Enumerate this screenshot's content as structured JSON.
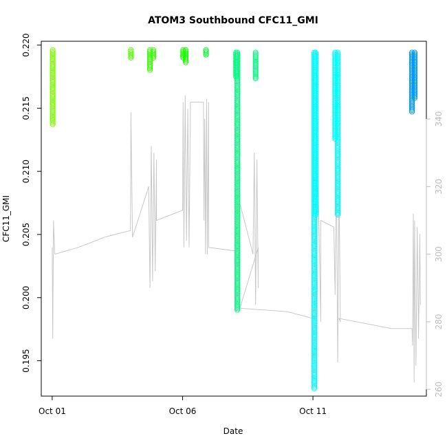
{
  "chart_data": {
    "type": "scatter",
    "title": "ATOM3 Southbound CFC11_GMI",
    "xlabel": "Date",
    "ylabel": "CFC11_GMI",
    "x_ticks": [
      "Oct 01",
      "Oct 06",
      "Oct 11"
    ],
    "x_tick_days": [
      1,
      6,
      11
    ],
    "xlim_days": [
      0.58,
      15.35
    ],
    "ylim": [
      0.1922,
      0.2203
    ],
    "y_ticks": [
      0.195,
      0.2,
      0.205,
      0.21,
      0.215,
      0.22
    ],
    "y_tick_labels": [
      "0.195",
      "0.200",
      "0.205",
      "0.210",
      "0.215",
      "0.220"
    ],
    "y2_ticks": [
      260,
      280,
      300,
      320,
      340
    ],
    "y2_lim": [
      258,
      363
    ],
    "grid": false,
    "series": [
      {
        "color": "#7FFF00",
        "points": [
          {
            "x": 1.02,
            "ymin": 0.2137,
            "ymax": 0.2196
          }
        ]
      },
      {
        "color": "#55FF00",
        "points": [
          {
            "x": 4.02,
            "ymin": 0.219,
            "ymax": 0.2196
          }
        ]
      },
      {
        "color": "#39FF00",
        "points": [
          {
            "x": 4.75,
            "ymin": 0.218,
            "ymax": 0.2196
          },
          {
            "x": 4.88,
            "ymin": 0.2189,
            "ymax": 0.2196
          }
        ]
      },
      {
        "color": "#19FF00",
        "points": [
          {
            "x": 6.02,
            "ymin": 0.219,
            "ymax": 0.2196
          },
          {
            "x": 6.12,
            "ymin": 0.2186,
            "ymax": 0.2196
          }
        ]
      },
      {
        "color": "#00FF33",
        "points": [
          {
            "x": 6.9,
            "ymin": 0.2192,
            "ymax": 0.2196
          }
        ]
      },
      {
        "color": "#00FF80",
        "points": [
          {
            "x": 8.05,
            "ymin": 0.2174,
            "ymax": 0.2194
          },
          {
            "x": 8.1,
            "ymin": 0.199,
            "ymax": 0.2194
          },
          {
            "x": 8.8,
            "ymin": 0.2173,
            "ymax": 0.2194
          }
        ]
      },
      {
        "color": "#00FFFF",
        "points": [
          {
            "x": 11.05,
            "ymin": 0.1928,
            "ymax": 0.2194
          },
          {
            "x": 11.1,
            "ymin": 0.2065,
            "ymax": 0.2194
          },
          {
            "x": 11.85,
            "ymin": 0.2125,
            "ymax": 0.2194
          },
          {
            "x": 11.95,
            "ymin": 0.2065,
            "ymax": 0.2194
          }
        ]
      },
      {
        "color": "#0099FF",
        "points": [
          {
            "x": 14.8,
            "ymin": 0.2147,
            "ymax": 0.2194
          },
          {
            "x": 14.9,
            "ymin": 0.2158,
            "ymax": 0.2194
          }
        ]
      }
    ],
    "secondary_track": {
      "color": "#c8c8c8",
      "points": [
        [
          1.0,
          302
        ],
        [
          1.02,
          275
        ],
        [
          1.05,
          310
        ],
        [
          1.1,
          300
        ],
        [
          2.0,
          302
        ],
        [
          3.0,
          305
        ],
        [
          4.0,
          307
        ],
        [
          4.02,
          342
        ],
        [
          4.05,
          322
        ],
        [
          4.08,
          305
        ],
        [
          4.7,
          320
        ],
        [
          4.75,
          290
        ],
        [
          4.8,
          332
        ],
        [
          4.85,
          292
        ],
        [
          4.9,
          330
        ],
        [
          4.95,
          295
        ],
        [
          5.0,
          328
        ],
        [
          5.0,
          310
        ],
        [
          6.0,
          313
        ],
        [
          6.02,
          345
        ],
        [
          6.05,
          302
        ],
        [
          6.1,
          347
        ],
        [
          6.15,
          304
        ],
        [
          6.2,
          343
        ],
        [
          6.25,
          302
        ],
        [
          6.3,
          345
        ],
        [
          6.8,
          345
        ],
        [
          6.82,
          310
        ],
        [
          6.85,
          340
        ],
        [
          6.88,
          300
        ],
        [
          6.92,
          346
        ],
        [
          6.95,
          300
        ],
        [
          7.0,
          345
        ],
        [
          7.0,
          302
        ],
        [
          8.0,
          301
        ],
        [
          8.05,
          283
        ],
        [
          8.1,
          325
        ],
        [
          8.15,
          290
        ],
        [
          8.2,
          315
        ],
        [
          8.7,
          300
        ],
        [
          8.75,
          330
        ],
        [
          8.8,
          285
        ],
        [
          8.85,
          328
        ],
        [
          8.9,
          290
        ],
        [
          8.9,
          302
        ],
        [
          8.2,
          284
        ],
        [
          10.0,
          283
        ],
        [
          11.0,
          281
        ],
        [
          11.05,
          265
        ],
        [
          11.1,
          328
        ],
        [
          11.15,
          272
        ],
        [
          11.2,
          322
        ],
        [
          11.3,
          280
        ],
        [
          11.3,
          310
        ],
        [
          11.8,
          308
        ],
        [
          11.85,
          288
        ],
        [
          11.9,
          325
        ],
        [
          11.95,
          268
        ],
        [
          12.0,
          320
        ],
        [
          12.05,
          280
        ],
        [
          12.0,
          281
        ],
        [
          14.0,
          278
        ],
        [
          14.8,
          278
        ],
        [
          14.82,
          273
        ],
        [
          14.85,
          312
        ],
        [
          14.88,
          262
        ],
        [
          14.9,
          310
        ],
        [
          14.95,
          267
        ],
        [
          15.0,
          308
        ],
        [
          15.05,
          275
        ],
        [
          15.1,
          306
        ],
        [
          15.12,
          285
        ]
      ]
    }
  }
}
